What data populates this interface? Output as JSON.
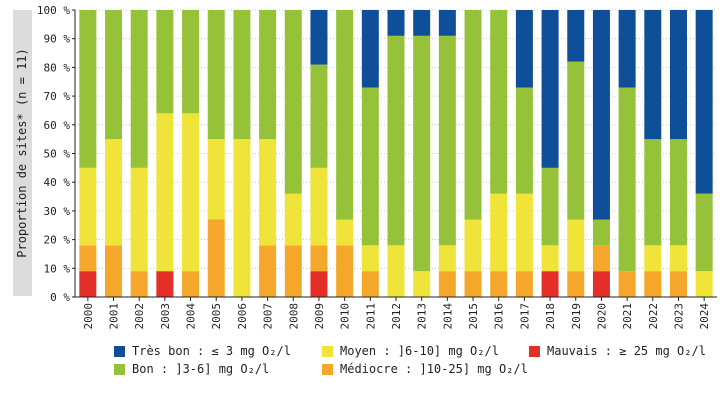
{
  "chart_data": {
    "type": "bar",
    "stacked": true,
    "ylabel": "Proportion de sites* (n = 11)",
    "ylim": [
      0,
      100
    ],
    "ytick_suffix": " %",
    "yticks": [
      0,
      10,
      20,
      30,
      40,
      50,
      60,
      70,
      80,
      90,
      100
    ],
    "categories": [
      "2000",
      "2001",
      "2002",
      "2003",
      "2004",
      "2005",
      "2006",
      "2007",
      "2008",
      "2009",
      "2010",
      "2011",
      "2012",
      "2013",
      "2014",
      "2015",
      "2016",
      "2017",
      "2018",
      "2019",
      "2020",
      "2021",
      "2022",
      "2023",
      "2024"
    ],
    "series": [
      {
        "name": "Mauvais : ≥ 25 mg O₂/l",
        "color": "#e32f27",
        "values": [
          9,
          0,
          0,
          9,
          0,
          0,
          0,
          0,
          0,
          9,
          0,
          0,
          0,
          0,
          0,
          0,
          0,
          0,
          9,
          0,
          9,
          0,
          0,
          0,
          0
        ]
      },
      {
        "name": "Médiocre : ]10-25] mg O₂/l",
        "color": "#f5a72c",
        "values": [
          9,
          18,
          9,
          0,
          9,
          27,
          0,
          18,
          18,
          9,
          18,
          9,
          0,
          0,
          9,
          9,
          9,
          9,
          0,
          9,
          9,
          9,
          9,
          9,
          0
        ]
      },
      {
        "name": "Moyen : ]6-10] mg O₂/l",
        "color": "#f0e43b",
        "values": [
          27,
          37,
          36,
          55,
          55,
          28,
          55,
          37,
          18,
          27,
          9,
          9,
          18,
          9,
          9,
          18,
          27,
          27,
          9,
          18,
          0,
          0,
          9,
          9,
          9
        ]
      },
      {
        "name": "Bon : ]3-6] mg O₂/l",
        "color": "#96c23a",
        "values": [
          55,
          45,
          55,
          36,
          36,
          45,
          45,
          45,
          64,
          36,
          73,
          55,
          73,
          82,
          73,
          73,
          64,
          37,
          27,
          55,
          9,
          64,
          37,
          37,
          27
        ]
      },
      {
        "name": "Très bon : ≤ 3 mg O₂/l",
        "color": "#0f4e99",
        "values": [
          0,
          0,
          0,
          0,
          0,
          0,
          0,
          0,
          0,
          19,
          0,
          27,
          9,
          9,
          9,
          0,
          0,
          27,
          55,
          18,
          73,
          27,
          45,
          45,
          64
        ]
      }
    ]
  },
  "legend": [
    {
      "label": "Très bon : ≤ 3 mg O₂/l",
      "color": "#0f4e99"
    },
    {
      "label": "Moyen : ]6-10] mg O₂/l",
      "color": "#f0e43b"
    },
    {
      "label": "Mauvais : ≥ 25 mg O₂/l",
      "color": "#e32f27"
    },
    {
      "label": "Bon : ]3-6] mg O₂/l",
      "color": "#96c23a"
    },
    {
      "label": "Médiocre : ]10-25] mg O₂/l",
      "color": "#f5a72c"
    }
  ]
}
